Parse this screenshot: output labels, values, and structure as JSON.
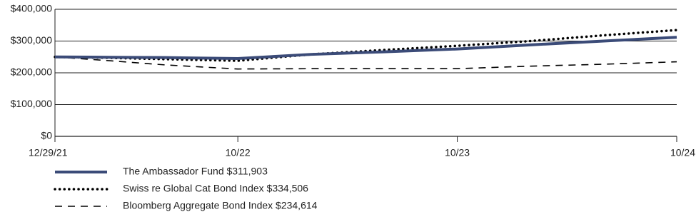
{
  "chart_data": {
    "type": "line",
    "x": [
      0,
      3,
      6,
      10,
      14,
      18,
      22,
      26,
      30,
      34
    ],
    "xlim": [
      0,
      34
    ],
    "xticks": [
      {
        "value": 0,
        "label": "12/29/21"
      },
      {
        "value": 10,
        "label": "10/22"
      },
      {
        "value": 22,
        "label": "10/23"
      },
      {
        "value": 34,
        "label": "10/24"
      }
    ],
    "ylim": [
      0,
      400000
    ],
    "yticks": [
      {
        "value": 0,
        "label": "$0"
      },
      {
        "value": 100000,
        "label": "$100,000"
      },
      {
        "value": 200000,
        "label": "$200,000"
      },
      {
        "value": 300000,
        "label": "$300,000"
      },
      {
        "value": 400000,
        "label": "$400,000"
      }
    ],
    "grid": true,
    "series": [
      {
        "name": "The Ambassador Fund $311,903",
        "color": "#3b4b78",
        "style": "solid",
        "values": [
          250000,
          249000,
          248000,
          245000,
          258000,
          266000,
          275000,
          288000,
          300000,
          311903
        ]
      },
      {
        "name": "Swiss re Global Cat Bond Index $334,506",
        "color": "#000000",
        "style": "dotted",
        "values": [
          250000,
          247000,
          243000,
          238000,
          258000,
          272000,
          285000,
          300000,
          318000,
          334506
        ]
      },
      {
        "name": "Bloomberg Aggregate Bond Index $234,614",
        "color": "#000000",
        "style": "dashed",
        "values": [
          250000,
          238000,
          225000,
          212000,
          213000,
          213000,
          213000,
          221000,
          227000,
          234614
        ]
      }
    ]
  }
}
